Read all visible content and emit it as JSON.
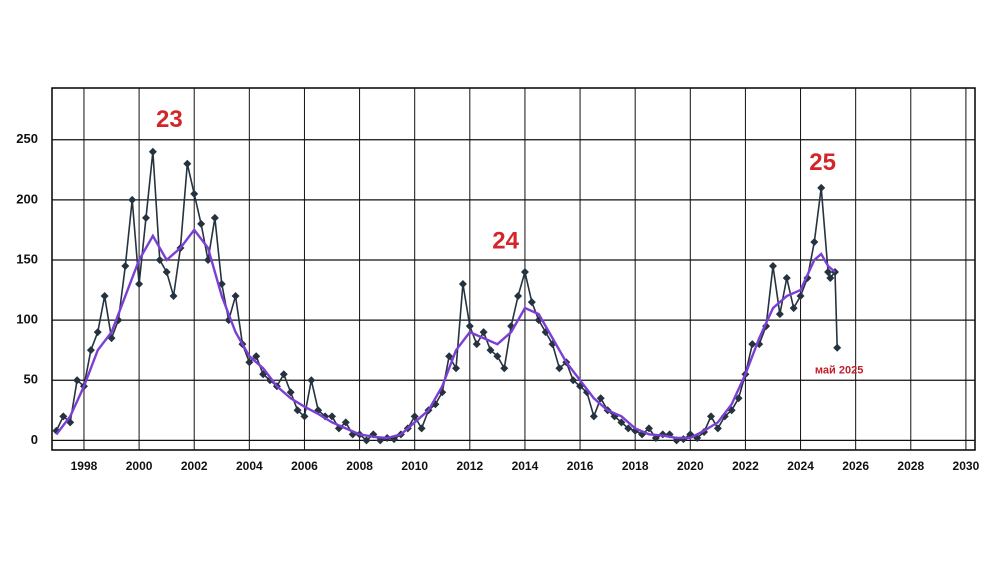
{
  "chart_data": {
    "type": "line",
    "xlim": [
      1996.84,
      2030.33
    ],
    "ylim": [
      -8,
      293
    ],
    "xticks": [
      1998,
      2000,
      2002,
      2004,
      2006,
      2008,
      2010,
      2012,
      2014,
      2016,
      2018,
      2020,
      2022,
      2024,
      2026,
      2028,
      2030
    ],
    "yticks": [
      0,
      50,
      100,
      150,
      200,
      250
    ],
    "grid": true,
    "series": [
      {
        "color": "#25323f",
        "markers": true,
        "x": [
          1997.0,
          1997.25,
          1997.5,
          1997.75,
          1998.0,
          1998.25,
          1998.5,
          1998.75,
          1999.0,
          1999.25,
          1999.5,
          1999.75,
          2000.0,
          2000.25,
          2000.5,
          2000.75,
          2001.0,
          2001.25,
          2001.5,
          2001.75,
          2002.0,
          2002.25,
          2002.5,
          2002.75,
          2003.0,
          2003.25,
          2003.5,
          2003.75,
          2004.0,
          2004.25,
          2004.5,
          2004.75,
          2005.0,
          2005.25,
          2005.5,
          2005.75,
          2006.0,
          2006.25,
          2006.5,
          2006.75,
          2007.0,
          2007.25,
          2007.5,
          2007.75,
          2008.0,
          2008.25,
          2008.5,
          2008.75,
          2009.0,
          2009.25,
          2009.5,
          2009.75,
          2010.0,
          2010.25,
          2010.5,
          2010.75,
          2011.0,
          2011.25,
          2011.5,
          2011.75,
          2012.0,
          2012.25,
          2012.5,
          2012.75,
          2013.0,
          2013.25,
          2013.5,
          2013.75,
          2014.0,
          2014.25,
          2014.5,
          2014.75,
          2015.0,
          2015.25,
          2015.5,
          2015.75,
          2016.0,
          2016.25,
          2016.5,
          2016.75,
          2017.0,
          2017.25,
          2017.5,
          2017.75,
          2018.0,
          2018.25,
          2018.5,
          2018.75,
          2019.0,
          2019.25,
          2019.5,
          2019.75,
          2020.0,
          2020.25,
          2020.5,
          2020.75,
          2021.0,
          2021.25,
          2021.5,
          2021.75,
          2022.0,
          2022.25,
          2022.5,
          2022.75,
          2023.0,
          2023.25,
          2023.5,
          2023.75,
          2024.0,
          2024.25,
          2024.5,
          2024.75,
          2025.0,
          2025.08,
          2025.25,
          2025.33
        ],
        "values": [
          8,
          20,
          15,
          50,
          45,
          75,
          90,
          120,
          85,
          100,
          145,
          200,
          130,
          185,
          240,
          150,
          140,
          120,
          160,
          230,
          205,
          180,
          150,
          185,
          130,
          100,
          120,
          80,
          65,
          70,
          55,
          50,
          45,
          55,
          40,
          25,
          20,
          50,
          25,
          20,
          20,
          10,
          15,
          5,
          5,
          0,
          5,
          0,
          2,
          1,
          5,
          10,
          20,
          10,
          25,
          30,
          40,
          70,
          60,
          130,
          95,
          80,
          90,
          75,
          70,
          60,
          95,
          120,
          140,
          115,
          100,
          90,
          80,
          60,
          65,
          50,
          45,
          40,
          20,
          35,
          25,
          20,
          15,
          10,
          8,
          5,
          10,
          2,
          5,
          5,
          0,
          1,
          5,
          2,
          7,
          20,
          10,
          20,
          25,
          35,
          55,
          80,
          80,
          95,
          145,
          105,
          135,
          110,
          120,
          135,
          165,
          210,
          140,
          135,
          140,
          77
        ]
      },
      {
        "color": "#7b3fd4",
        "markers": false,
        "x": [
          1997.0,
          1997.5,
          1998.0,
          1998.5,
          1999.0,
          1999.5,
          2000.0,
          2000.5,
          2001.0,
          2001.5,
          2002.0,
          2002.5,
          2003.0,
          2003.5,
          2004.0,
          2004.5,
          2005.0,
          2005.5,
          2006.0,
          2006.5,
          2007.0,
          2007.5,
          2008.0,
          2008.5,
          2009.0,
          2009.5,
          2010.0,
          2010.5,
          2011.0,
          2011.5,
          2012.0,
          2012.5,
          2013.0,
          2013.5,
          2014.0,
          2014.5,
          2015.0,
          2015.5,
          2016.0,
          2016.5,
          2017.0,
          2017.5,
          2018.0,
          2018.5,
          2019.0,
          2019.5,
          2020.0,
          2020.5,
          2021.0,
          2021.5,
          2022.0,
          2022.5,
          2023.0,
          2023.5,
          2024.0,
          2024.5,
          2024.75,
          2025.0,
          2025.25
        ],
        "values": [
          5,
          20,
          45,
          75,
          90,
          120,
          150,
          170,
          150,
          160,
          175,
          160,
          120,
          90,
          70,
          60,
          45,
          35,
          28,
          22,
          15,
          10,
          5,
          3,
          2,
          5,
          15,
          25,
          45,
          75,
          90,
          85,
          80,
          90,
          110,
          105,
          85,
          65,
          50,
          35,
          25,
          20,
          10,
          5,
          4,
          2,
          2,
          8,
          15,
          30,
          55,
          85,
          110,
          120,
          125,
          150,
          155,
          145,
          140
        ]
      }
    ],
    "annotations": [
      {
        "text": "23",
        "x": 2001.1,
        "y": 266,
        "color": "#d4262a"
      },
      {
        "text": "24",
        "x": 2013.3,
        "y": 165,
        "color": "#d4262a"
      },
      {
        "text": "25",
        "x": 2024.8,
        "y": 230,
        "color": "#d4262a"
      },
      {
        "text": "май 2025",
        "x": 2025.4,
        "y": 58,
        "color": "#c0202a"
      }
    ]
  }
}
